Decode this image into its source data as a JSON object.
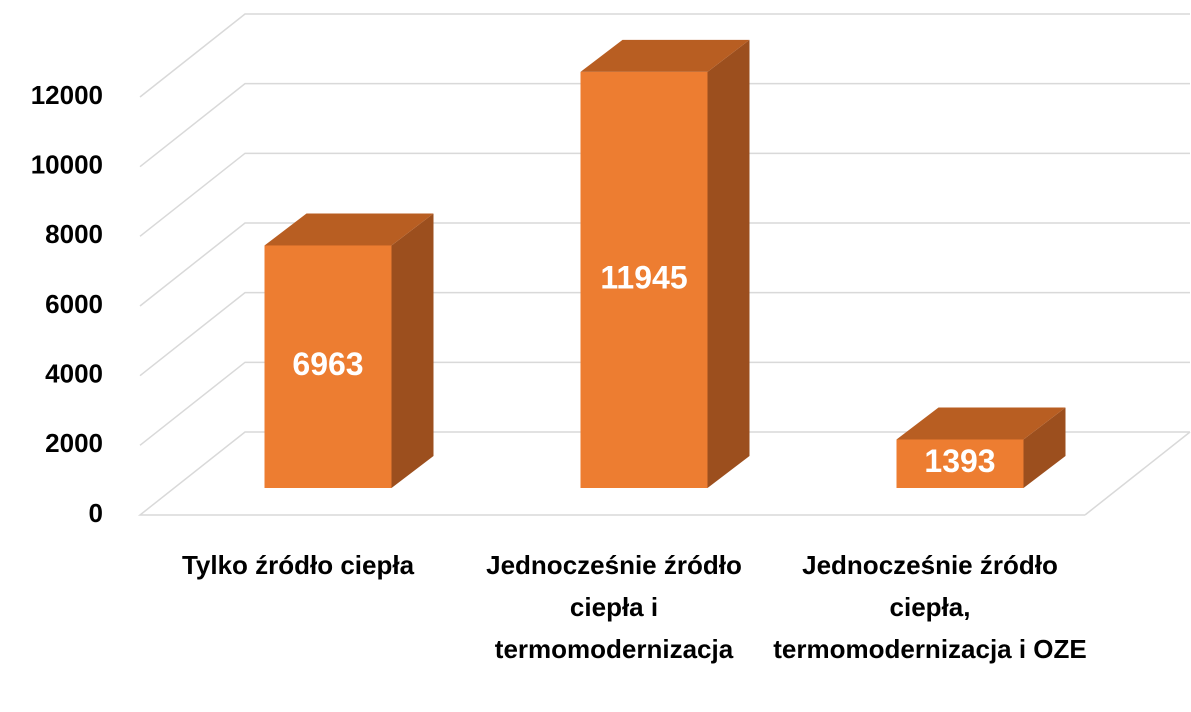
{
  "chart_data": {
    "type": "bar3d",
    "categories": [
      "Tylko źródło ciepła",
      "Jednocześnie źródło ciepła i termomodernizacja",
      "Jednocześnie źródło ciepła, termomodernizacja i OZE"
    ],
    "values": [
      6963,
      11945,
      1393
    ],
    "color": "#ed7d31",
    "ylim": [
      0,
      12000
    ],
    "yticks": [
      0,
      2000,
      4000,
      6000,
      8000,
      10000,
      12000
    ],
    "grid": true
  }
}
